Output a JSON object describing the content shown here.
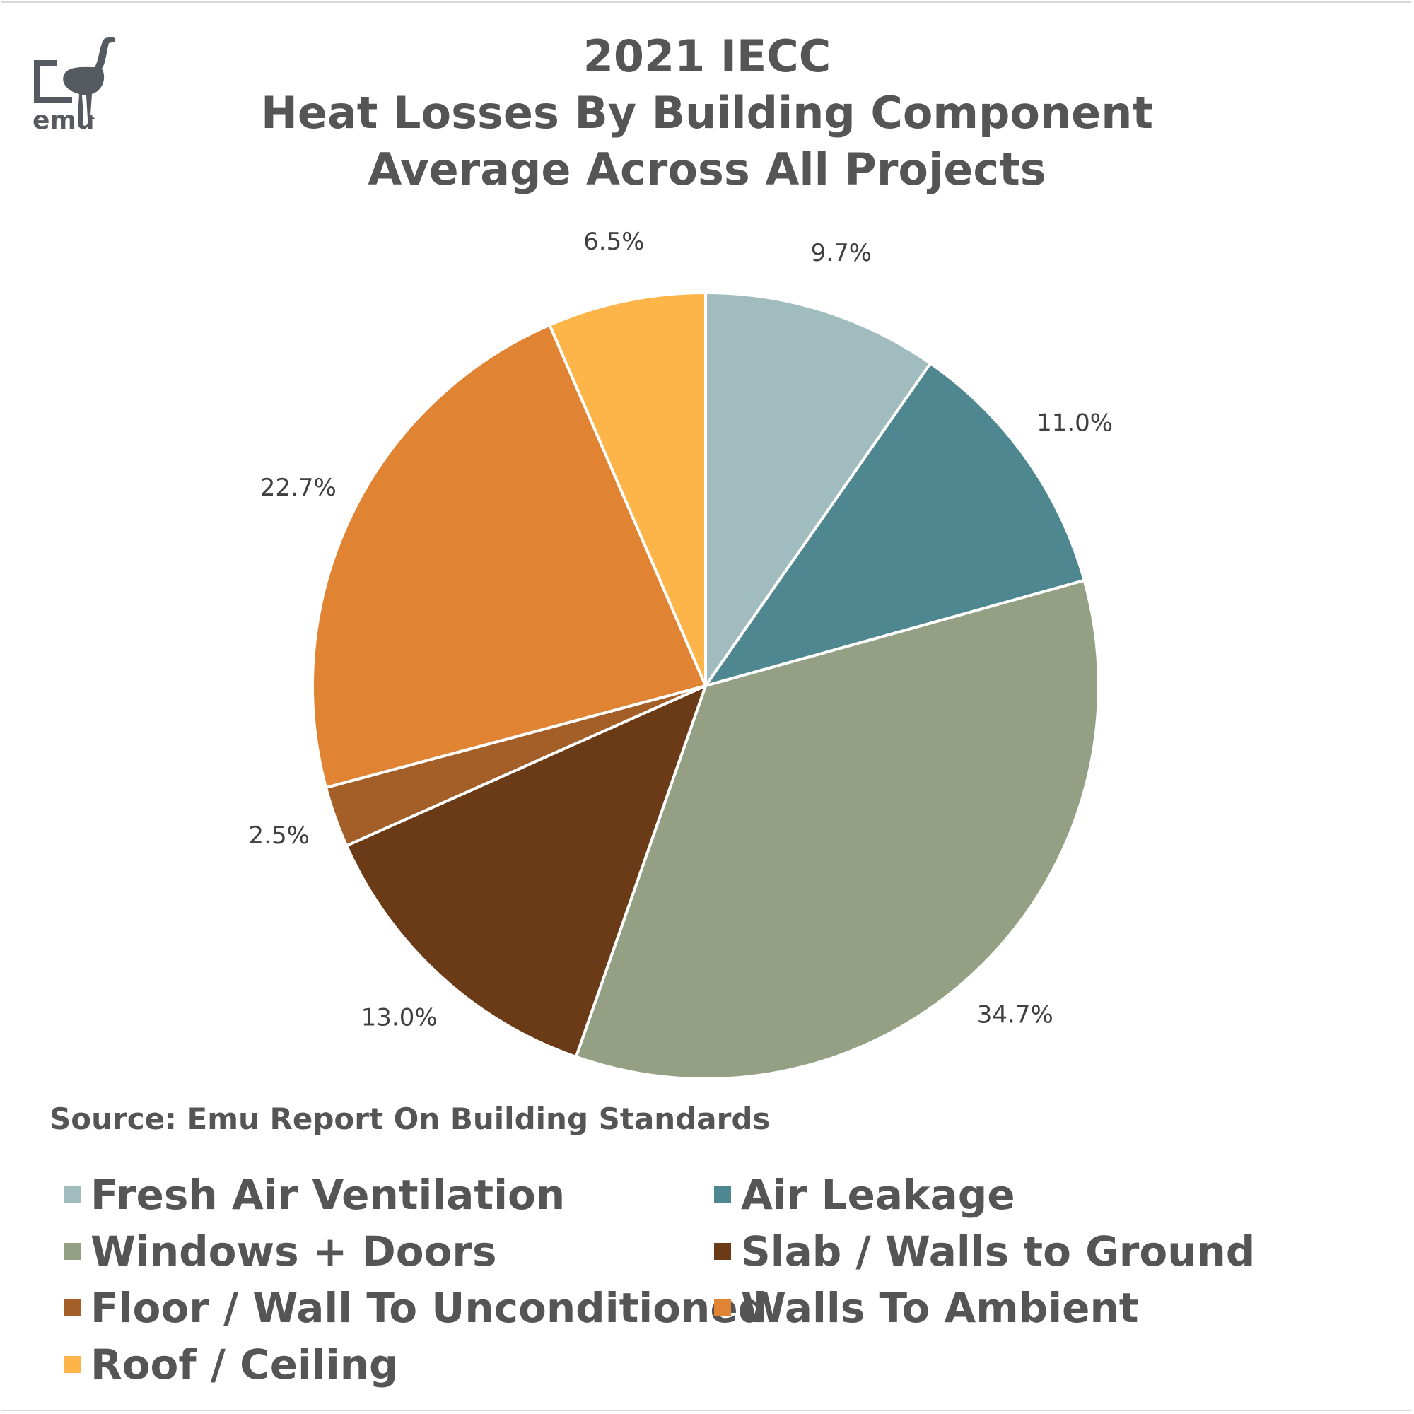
{
  "logo": {
    "text": "emu",
    "icon": "emu-bird-icon"
  },
  "title_lines": [
    "2021 IECC",
    "Heat Losses By Building Component",
    "Average Across All Projects"
  ],
  "source": "Source: Emu Report On Building Standards",
  "chart_data": {
    "type": "pie",
    "title": "2021 IECC Heat Losses By Building Component Average Across All Projects",
    "categories": [
      "Fresh Air Ventilation",
      "Air Leakage",
      "Windows + Doors",
      "Slab / Walls to Ground",
      "Floor / Wall To Unconditioned",
      "Walls To Ambient",
      "Roof / Ceiling"
    ],
    "values": [
      9.7,
      11.0,
      34.7,
      13.0,
      2.5,
      22.7,
      6.5
    ],
    "data_labels": [
      "9.7%",
      "11.0%",
      "34.7%",
      "13.0%",
      "2.5%",
      "22.7%",
      "6.5%"
    ],
    "colors": [
      "#a0bcbf",
      "#4e878f",
      "#949f84",
      "#6b3b17",
      "#a35f27",
      "#e08433",
      "#fdb448"
    ],
    "start_angle": "12 o'clock",
    "direction": "clockwise",
    "legend_position": "bottom"
  }
}
